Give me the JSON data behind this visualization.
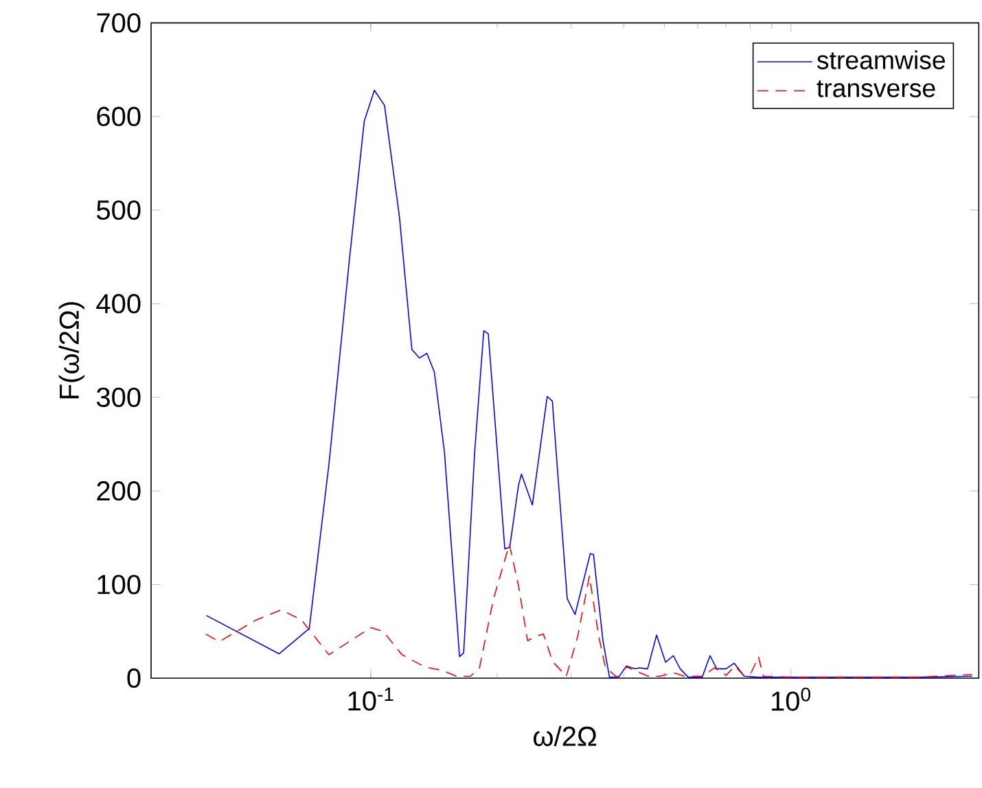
{
  "chart_data": {
    "type": "line",
    "xlabel": "ω/2Ω",
    "ylabel": "F(ω/2Ω)",
    "log": "x",
    "grid": false,
    "legend": "top right",
    "xlim": [
      0.03,
      2.8
    ],
    "ylim": [
      0,
      700
    ],
    "xticks": [
      {
        "value": 0.1,
        "label": "10$^{-1}$"
      },
      {
        "value": 1,
        "label": "10$^{0}$"
      }
    ],
    "yticks": [
      0,
      100,
      200,
      300,
      400,
      500,
      600,
      700
    ],
    "series": [
      {
        "name": "streamwise",
        "color": "#0000ff",
        "line_style": "solid",
        "x": [
          0.0406,
          0.0605,
          0.0714,
          0.0796,
          0.0889,
          0.0965,
          0.102,
          0.1078,
          0.117,
          0.1253,
          0.1306,
          0.136,
          0.1417,
          0.1498,
          0.1627,
          0.1664,
          0.1767,
          0.1858,
          0.1904,
          0.2085,
          0.2142,
          0.2247,
          0.2284,
          0.2425,
          0.263,
          0.2705,
          0.2935,
          0.3064,
          0.333,
          0.339,
          0.357,
          0.37,
          0.389,
          0.406,
          0.425,
          0.436,
          0.456,
          0.479,
          0.503,
          0.525,
          0.545,
          0.57,
          0.615,
          0.642,
          0.666,
          0.701,
          0.733,
          0.775,
          0.836,
          1.2,
          2.0,
          2.7
        ],
        "values": [
          67,
          26,
          53,
          230,
          446,
          595,
          628,
          612,
          493,
          351,
          342,
          347,
          327,
          241,
          23,
          27,
          241,
          371,
          368,
          138,
          140,
          206,
          218,
          185,
          301,
          296,
          85,
          68,
          133,
          132,
          40,
          1,
          1,
          13,
          10,
          11,
          10,
          46,
          17,
          24,
          10,
          1,
          1,
          24,
          10,
          10,
          16,
          2,
          1,
          1,
          1,
          2
        ]
      },
      {
        "name": "transverse",
        "color": "#ff0000",
        "line_style": "dashed",
        "x": [
          0.0405,
          0.0436,
          0.0533,
          0.0612,
          0.0685,
          0.0795,
          0.1,
          0.107,
          0.1187,
          0.1345,
          0.1487,
          0.16,
          0.1727,
          0.1815,
          0.1958,
          0.2138,
          0.2247,
          0.2362,
          0.2483,
          0.2577,
          0.2707,
          0.292,
          0.311,
          0.3315,
          0.3487,
          0.3621,
          0.386,
          0.406,
          0.436,
          0.458,
          0.488,
          0.525,
          0.559,
          0.617,
          0.658,
          0.701,
          0.736,
          0.775,
          0.805,
          0.837,
          0.86,
          1.0,
          1.5,
          2.0,
          2.7
        ],
        "values": [
          47,
          39,
          62,
          73,
          62,
          25,
          54,
          50,
          25,
          12,
          8,
          2,
          2,
          11,
          84,
          143,
          99,
          40,
          45,
          47,
          18,
          2,
          45,
          109,
          45,
          11,
          1,
          12,
          6,
          2,
          2,
          6,
          2,
          2,
          11,
          3,
          13,
          2,
          6,
          23,
          2,
          1,
          1,
          1,
          4
        ]
      }
    ]
  }
}
